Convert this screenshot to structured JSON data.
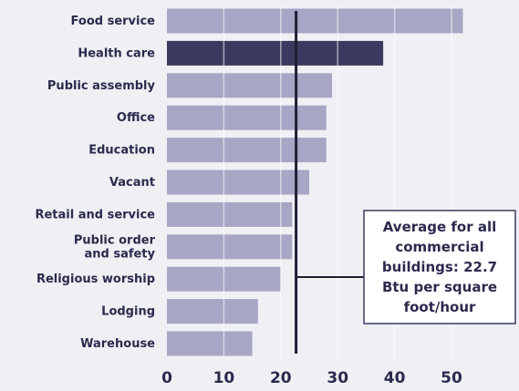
{
  "chart_data": {
    "type": "bar",
    "orientation": "horizontal",
    "categories": [
      "Food service",
      "Health care",
      "Public assembly",
      "Office",
      "Education",
      "Vacant",
      "Retail and service",
      "Public order and safety",
      "Religious worship",
      "Lodging",
      "Warehouse"
    ],
    "category_lines": [
      [
        "Food service"
      ],
      [
        "Health care"
      ],
      [
        "Public assembly"
      ],
      [
        "Office"
      ],
      [
        "Education"
      ],
      [
        "Vacant"
      ],
      [
        "Retail and service"
      ],
      [
        "Public order",
        "and safety"
      ],
      [
        "Religious worship"
      ],
      [
        "Lodging"
      ],
      [
        "Warehouse"
      ]
    ],
    "values": [
      52,
      38,
      29,
      28,
      28,
      25,
      22,
      22,
      20,
      16,
      15
    ],
    "highlight_index": 1,
    "xticks": [
      0,
      10,
      20,
      30,
      40,
      50
    ],
    "xlim": [
      0,
      55
    ],
    "grid": "vertical",
    "reference_line": {
      "value": 22.7,
      "label_lines": [
        "Average for all",
        "commercial",
        "buildings: 22.7",
        "Btu per square",
        "foot/hour"
      ]
    },
    "colors": {
      "bar": "#a7a6c4",
      "highlight_bar": "#3b3a5e",
      "text": "#2b2a4d",
      "background": "#eef0f4",
      "grid": "#ffffff",
      "reference_line": "#1f1e33"
    },
    "title": "",
    "xlabel": "",
    "ylabel": ""
  }
}
